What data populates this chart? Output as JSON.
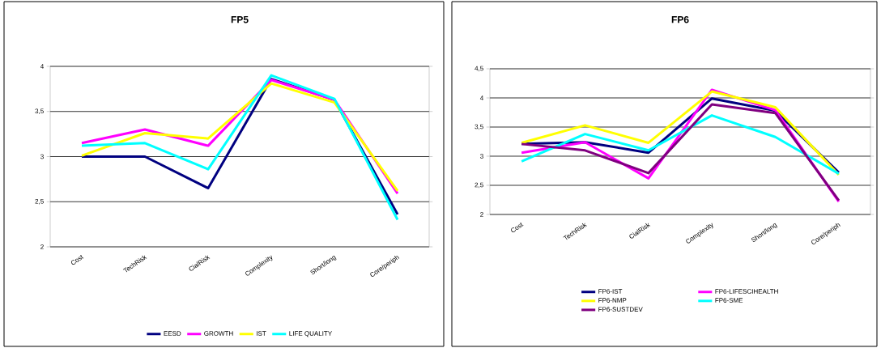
{
  "chart_data": [
    {
      "type": "line",
      "title": "FP5",
      "categories": [
        "Cost",
        "TechRisk",
        "CialRisk",
        "Complexity",
        "Short/long",
        "Core/periph"
      ],
      "series": [
        {
          "name": "EESD",
          "color": "#000080",
          "values": [
            3.0,
            3.0,
            2.65,
            3.86,
            3.63,
            2.36
          ]
        },
        {
          "name": "GROWTH",
          "color": "#ff00ff",
          "values": [
            3.15,
            3.3,
            3.12,
            3.85,
            3.63,
            2.59
          ]
        },
        {
          "name": "IST",
          "color": "#ffff00",
          "values": [
            3.01,
            3.26,
            3.2,
            3.81,
            3.6,
            2.62
          ]
        },
        {
          "name": "LIFE QUALITY",
          "color": "#00ffff",
          "values": [
            3.12,
            3.15,
            2.86,
            3.9,
            3.64,
            2.3
          ]
        }
      ],
      "ylim": [
        2,
        4
      ],
      "yticks": [
        2,
        {
          "value": 2.5,
          "label": "2,5"
        },
        3,
        {
          "value": 3.5,
          "label": "3,5"
        },
        4
      ],
      "grid": "y",
      "legend": "bottom"
    },
    {
      "type": "line",
      "title": "FP6",
      "categories": [
        "Cost",
        "TechRisk",
        "CialRisk",
        "Complexity",
        "Short/long",
        "Core/periph"
      ],
      "series": [
        {
          "name": "FP6-IST",
          "color": "#000080",
          "values": [
            3.21,
            3.24,
            3.06,
            3.99,
            3.78,
            2.72
          ]
        },
        {
          "name": "FP6-LIFESCIHEALTH",
          "color": "#ff00ff",
          "values": [
            3.06,
            3.24,
            2.62,
            4.14,
            3.79,
            2.22
          ]
        },
        {
          "name": "FP6-NMP",
          "color": "#ffff00",
          "values": [
            3.23,
            3.53,
            3.23,
            4.11,
            3.84,
            2.68
          ]
        },
        {
          "name": "FP6-SME",
          "color": "#00ffff",
          "values": [
            2.91,
            3.38,
            3.1,
            3.7,
            3.33,
            2.7
          ]
        },
        {
          "name": "FP6-SUSTDEV",
          "color": "#800080",
          "values": [
            3.21,
            3.1,
            2.71,
            3.89,
            3.74,
            2.24
          ]
        }
      ],
      "ylim": [
        2,
        4.5
      ],
      "yticks": [
        2,
        {
          "value": 2.5,
          "label": "2,5"
        },
        3,
        {
          "value": 3.5,
          "label": "3,5"
        },
        4,
        {
          "value": 4.5,
          "label": "4,5"
        }
      ],
      "grid": "y",
      "legend": "bottom"
    }
  ]
}
